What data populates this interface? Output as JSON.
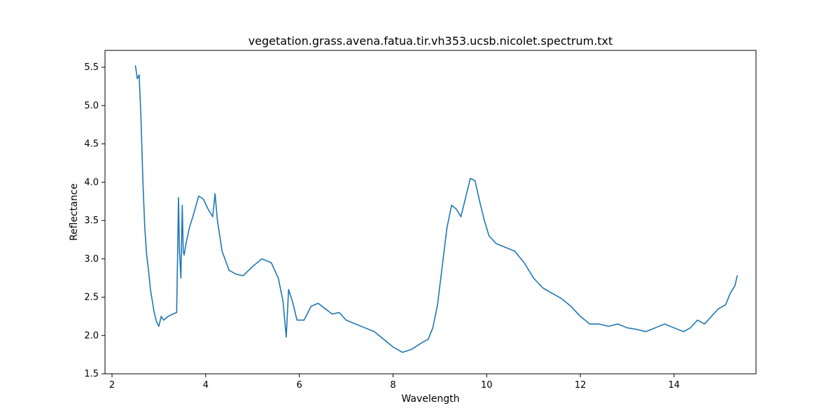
{
  "chart_data": {
    "type": "line",
    "title": "vegetation.grass.avena.fatua.tir.vh353.ucsb.nicolet.spectrum.txt",
    "xlabel": "Wavelength",
    "ylabel": "Reflectance",
    "xlim": [
      1.85,
      15.75
    ],
    "ylim": [
      1.5,
      5.72
    ],
    "xticks": [
      2,
      4,
      6,
      8,
      10,
      12,
      14
    ],
    "yticks": [
      1.5,
      2.0,
      2.5,
      3.0,
      3.5,
      4.0,
      4.5,
      5.0,
      5.5
    ],
    "xtick_labels": [
      "2",
      "4",
      "6",
      "8",
      "10",
      "12",
      "14"
    ],
    "ytick_labels": [
      "1.5",
      "2.0",
      "2.5",
      "3.0",
      "3.5",
      "4.0",
      "4.5",
      "5.0",
      "5.5"
    ],
    "grid": false,
    "legend": "none",
    "line_color": "#1f77b4",
    "series": [
      {
        "x": [
          2.5,
          2.54,
          2.58,
          2.62,
          2.66,
          2.7,
          2.74,
          2.78,
          2.82,
          2.86,
          2.9,
          2.95,
          3.0,
          3.05,
          3.1,
          3.2,
          3.3,
          3.38,
          3.42,
          3.44,
          3.47,
          3.5,
          3.52,
          3.54,
          3.58,
          3.65,
          3.75,
          3.85,
          3.95,
          4.05,
          4.15,
          4.2,
          4.25,
          4.35,
          4.5,
          4.65,
          4.8,
          5.0,
          5.2,
          5.4,
          5.55,
          5.65,
          5.72,
          5.77,
          5.85,
          5.95,
          6.1,
          6.25,
          6.4,
          6.55,
          6.7,
          6.85,
          7.0,
          7.2,
          7.4,
          7.6,
          7.8,
          8.0,
          8.2,
          8.4,
          8.6,
          8.75,
          8.85,
          8.95,
          9.05,
          9.15,
          9.25,
          9.35,
          9.45,
          9.55,
          9.65,
          9.75,
          9.85,
          9.95,
          10.05,
          10.2,
          10.4,
          10.6,
          10.8,
          11.0,
          11.2,
          11.4,
          11.6,
          11.8,
          12.0,
          12.2,
          12.4,
          12.6,
          12.8,
          13.0,
          13.2,
          13.4,
          13.6,
          13.8,
          14.0,
          14.2,
          14.35,
          14.5,
          14.65,
          14.8,
          14.95,
          15.1,
          15.2,
          15.3,
          15.35
        ],
        "y": [
          5.52,
          5.35,
          5.4,
          4.8,
          4.0,
          3.4,
          3.05,
          2.85,
          2.6,
          2.45,
          2.3,
          2.18,
          2.12,
          2.25,
          2.2,
          2.25,
          2.28,
          2.3,
          3.8,
          3.1,
          2.75,
          3.7,
          3.1,
          3.05,
          3.2,
          3.4,
          3.6,
          3.82,
          3.78,
          3.65,
          3.55,
          3.85,
          3.5,
          3.1,
          2.85,
          2.8,
          2.78,
          2.9,
          3.0,
          2.95,
          2.75,
          2.45,
          1.98,
          2.6,
          2.45,
          2.2,
          2.2,
          2.38,
          2.42,
          2.35,
          2.28,
          2.3,
          2.2,
          2.15,
          2.1,
          2.05,
          1.95,
          1.85,
          1.78,
          1.82,
          1.9,
          1.95,
          2.1,
          2.4,
          2.9,
          3.4,
          3.7,
          3.65,
          3.55,
          3.8,
          4.05,
          4.02,
          3.75,
          3.5,
          3.3,
          3.2,
          3.15,
          3.1,
          2.95,
          2.75,
          2.62,
          2.55,
          2.48,
          2.38,
          2.25,
          2.15,
          2.15,
          2.12,
          2.15,
          2.1,
          2.08,
          2.05,
          2.1,
          2.15,
          2.1,
          2.05,
          2.1,
          2.2,
          2.15,
          2.25,
          2.35,
          2.4,
          2.55,
          2.65,
          2.78
        ]
      }
    ]
  }
}
